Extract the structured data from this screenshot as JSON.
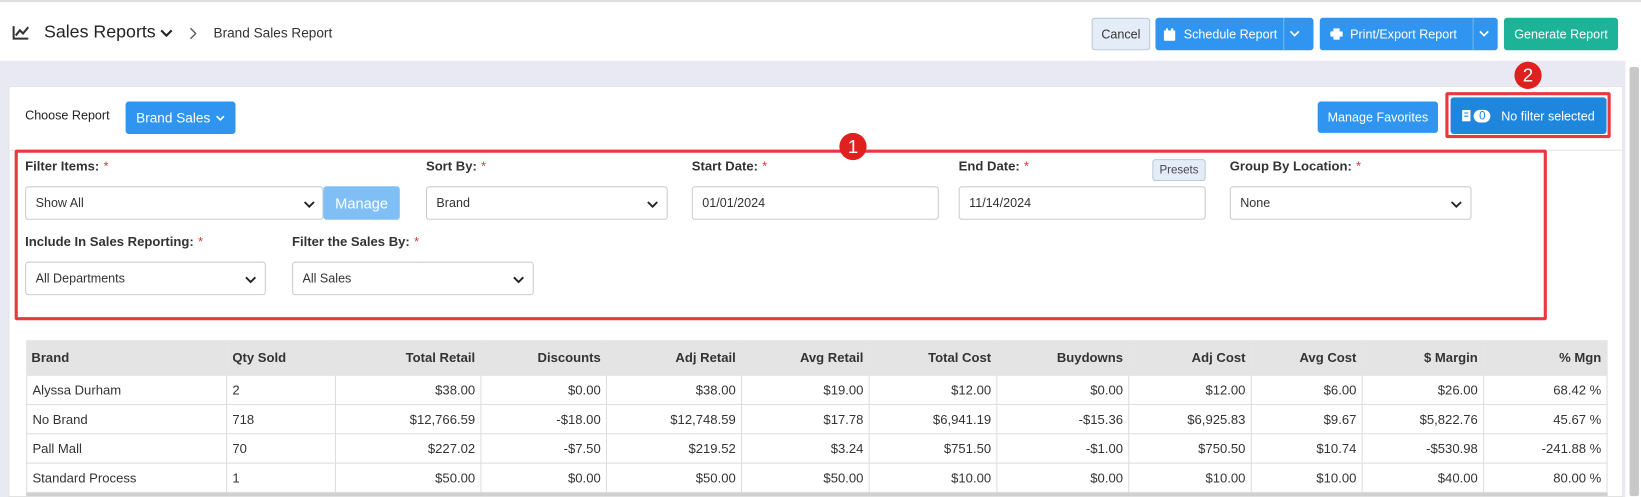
{
  "header": {
    "title": "Sales Reports",
    "breadcrumb": "Brand Sales Report",
    "buttons": {
      "cancel": "Cancel",
      "schedule": "Schedule Report",
      "print": "Print/Export Report",
      "generate": "Generate Report"
    }
  },
  "toolbar": {
    "choose_label": "Choose Report",
    "report_button": "Brand Sales",
    "manage_favorites": "Manage Favorites",
    "filter_count": "0",
    "filter_status": "No filter selected"
  },
  "annotations": [
    "1",
    "2"
  ],
  "filters": [
    {
      "label": "Filter Items:",
      "required": "*",
      "value": "Show All",
      "button": "Manage"
    },
    {
      "label": "Sort By:",
      "required": "*",
      "value": "Brand"
    },
    {
      "label": "Start Date:",
      "required": "*",
      "value": "01/01/2024"
    },
    {
      "label": "End Date:",
      "required": "*",
      "value": "11/14/2024",
      "button": "Presets"
    },
    {
      "label": "Group By Location:",
      "required": "*",
      "value": "None"
    },
    {
      "label": "Include In Sales Reporting:",
      "required": "*",
      "value": "All Departments"
    },
    {
      "label": "Filter the Sales By:",
      "required": "*",
      "value": "All Sales"
    }
  ],
  "table": {
    "columns": [
      "Brand",
      "Qty Sold",
      "Total Retail",
      "Discounts",
      "Adj Retail",
      "Avg Retail",
      "Total Cost",
      "Buydowns",
      "Adj Cost",
      "Avg Cost",
      "$ Margin",
      "% Mgn"
    ],
    "rows": [
      [
        "Alyssa Durham",
        "2",
        "$38.00",
        "$0.00",
        "$38.00",
        "$19.00",
        "$12.00",
        "$0.00",
        "$12.00",
        "$6.00",
        "$26.00",
        "68.42 %"
      ],
      [
        "No Brand",
        "718",
        "$12,766.59",
        "-$18.00",
        "$12,748.59",
        "$17.78",
        "$6,941.19",
        "-$15.36",
        "$6,925.83",
        "$9.67",
        "$5,822.76",
        "45.67 %"
      ],
      [
        "Pall Mall",
        "70",
        "$227.02",
        "-$7.50",
        "$219.52",
        "$3.24",
        "$751.50",
        "-$1.00",
        "$750.50",
        "$10.74",
        "-$530.98",
        "-241.88 %"
      ],
      [
        "Standard Process",
        "1",
        "$50.00",
        "$0.00",
        "$50.00",
        "$50.00",
        "$10.00",
        "$0.00",
        "$10.00",
        "$10.00",
        "$40.00",
        "80.00 %"
      ]
    ]
  }
}
